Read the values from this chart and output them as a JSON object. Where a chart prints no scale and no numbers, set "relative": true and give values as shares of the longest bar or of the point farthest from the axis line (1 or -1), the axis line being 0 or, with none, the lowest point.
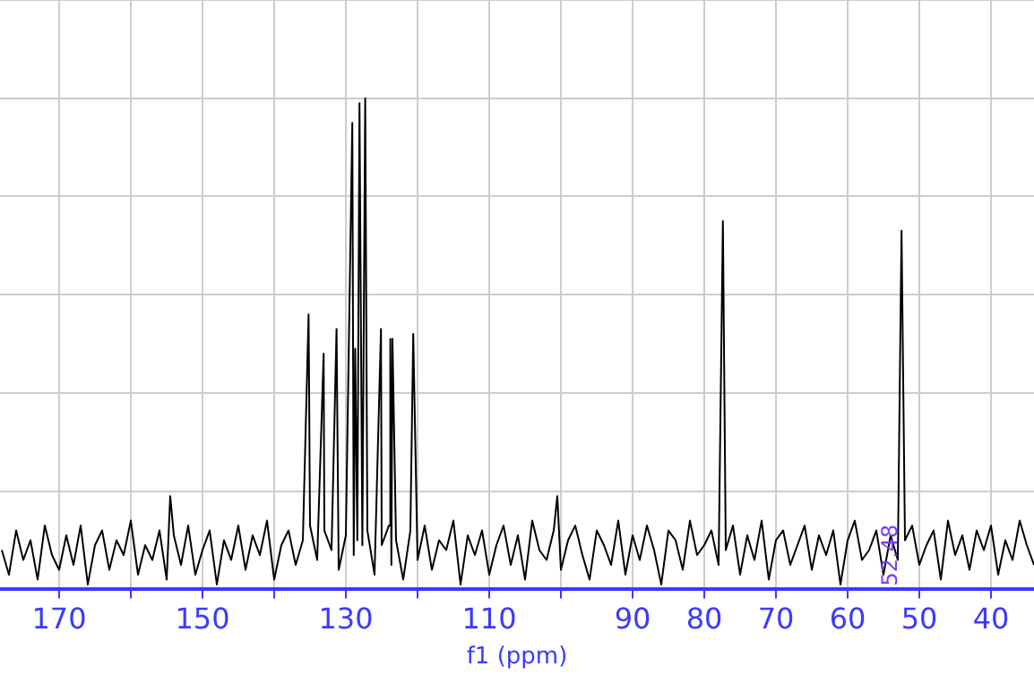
{
  "chart_data": {
    "type": "line",
    "xlabel": "f1 (ppm)",
    "relative": true,
    "grid": true,
    "tick_labels": "x",
    "marker": "none",
    "line_style": "solid",
    "xlim": [
      178.25,
      34
    ],
    "xticks": [
      170,
      {
        "value": 160,
        "label": null
      },
      150,
      {
        "value": 140,
        "label": null
      },
      130,
      {
        "value": 120,
        "label": null
      },
      110,
      {
        "value": 100,
        "label": null
      },
      90,
      80,
      70,
      60,
      50,
      40
    ],
    "annotations": [
      "52.48"
    ],
    "series": [
      {
        "color": "#000000",
        "x": [
          178,
          177,
          176,
          175,
          174,
          173,
          172,
          171,
          170,
          169,
          168,
          167,
          166,
          165,
          164,
          163,
          162,
          161,
          160,
          159,
          158,
          157,
          156,
          155,
          154.5,
          154,
          153,
          152,
          151,
          150,
          149,
          148,
          147,
          146,
          145,
          144,
          143,
          142,
          141,
          140,
          139,
          138,
          137,
          136,
          135.2,
          135,
          134,
          133.1,
          133,
          132,
          131.3,
          131,
          130,
          129.1,
          128.9,
          128.7,
          128.4,
          128.1,
          127.7,
          127.3,
          127,
          126,
          125.1,
          125,
          124,
          123.8,
          123.65,
          123.5,
          123,
          122,
          121,
          120.6,
          120,
          119,
          118,
          117,
          116,
          115,
          114,
          113,
          112,
          111,
          110,
          109,
          108,
          107,
          106,
          105,
          104,
          103,
          102,
          101,
          100.5,
          100,
          99,
          98,
          97,
          96,
          95,
          94,
          93,
          92,
          91,
          90,
          89,
          88,
          87,
          86,
          85,
          84,
          83,
          82,
          81,
          80,
          79,
          78,
          77.4,
          77,
          76,
          75,
          74,
          73,
          72,
          71,
          70,
          69,
          68,
          67,
          66,
          65,
          64,
          63,
          62,
          61,
          60,
          59,
          58,
          57,
          56,
          55,
          54,
          53,
          52.48,
          52,
          51,
          50,
          49,
          48,
          47,
          46,
          45,
          44,
          43,
          42,
          41,
          40,
          39,
          38,
          37,
          36,
          35,
          34
        ],
        "values": [
          0.08,
          0.03,
          0.12,
          0.06,
          0.1,
          0.02,
          0.13,
          0.07,
          0.04,
          0.11,
          0.05,
          0.13,
          0.01,
          0.09,
          0.12,
          0.04,
          0.1,
          0.07,
          0.14,
          0.03,
          0.09,
          0.06,
          0.12,
          0.02,
          0.19,
          0.11,
          0.05,
          0.13,
          0.03,
          0.08,
          0.12,
          0.01,
          0.1,
          0.06,
          0.13,
          0.04,
          0.11,
          0.07,
          0.14,
          0.02,
          0.09,
          0.12,
          0.05,
          0.1,
          0.56,
          0.13,
          0.06,
          0.48,
          0.12,
          0.08,
          0.53,
          0.04,
          0.11,
          0.95,
          0.07,
          0.49,
          0.1,
          0.99,
          0.09,
          1,
          0.12,
          0.03,
          0.53,
          0.09,
          0.13,
          0.51,
          0.05,
          0.51,
          0.1,
          0.02,
          0.12,
          0.52,
          0.06,
          0.13,
          0.04,
          0.1,
          0.08,
          0.14,
          0.01,
          0.11,
          0.07,
          0.12,
          0.03,
          0.09,
          0.13,
          0.05,
          0.11,
          0.02,
          0.14,
          0.08,
          0.06,
          0.12,
          0.19,
          0.04,
          0.1,
          0.13,
          0.07,
          0.02,
          0.12,
          0.09,
          0.05,
          0.14,
          0.03,
          0.11,
          0.06,
          0.13,
          0.08,
          0.01,
          0.12,
          0.1,
          0.04,
          0.14,
          0.07,
          0.09,
          0.12,
          0.05,
          0.75,
          0.08,
          0.13,
          0.03,
          0.11,
          0.06,
          0.14,
          0.02,
          0.1,
          0.12,
          0.05,
          0.09,
          0.13,
          0.04,
          0.11,
          0.07,
          0.12,
          0.01,
          0.1,
          0.14,
          0.06,
          0.08,
          0.12,
          0.03,
          0.11,
          0.06,
          0.73,
          0.1,
          0.13,
          0.05,
          0.09,
          0.12,
          0.02,
          0.14,
          0.07,
          0.11,
          0.04,
          0.12,
          0.08,
          0.13,
          0.03,
          0.1,
          0.06,
          0.14,
          0.09,
          0.05
        ]
      }
    ]
  }
}
